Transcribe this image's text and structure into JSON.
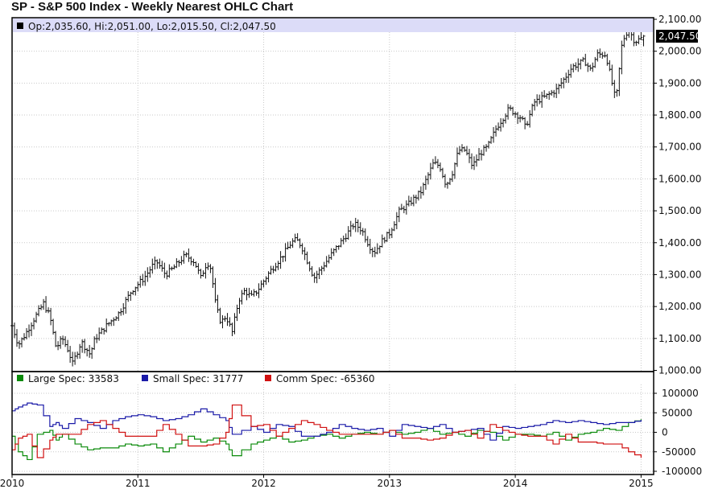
{
  "title": "SP - S&P 500 Index - Weekly Nearest OHLC Chart",
  "ohlc_legend": "Op:2,035.60, Hi:2,051.00, Lo:2,015.50, Cl:2,047.50",
  "last_price_label": "2,047.50",
  "cot_legend": [
    {
      "label": "Large Spec: 33583",
      "color": "#0a8a0a"
    },
    {
      "label": "Small Spec: 31777",
      "color": "#1a1aa8"
    },
    {
      "label": "Comm Spec: -65360",
      "color": "#d01010"
    }
  ],
  "colors": {
    "bar": "#111111",
    "grid": "#c9c9c9",
    "frame": "#000000",
    "legend_band": "#dcdcf8",
    "large_spec": "#0a8a0a",
    "small_spec": "#1a1aa8",
    "comm_spec": "#d01010"
  },
  "chart_data": [
    {
      "type": "ohlc",
      "title": "SP - S&P 500 Index - Weekly Nearest OHLC Chart",
      "ylim": [
        1000,
        2100
      ],
      "xlim": [
        2010.0,
        2015.1
      ],
      "y_ticks": [
        "1,000.00",
        "1,100.00",
        "1,200.00",
        "1,300.00",
        "1,400.00",
        "1,500.00",
        "1,600.00",
        "1,700.00",
        "1,800.00",
        "1,900.00",
        "2,000.00",
        "2,100.00"
      ],
      "y_tick_values": [
        1000,
        1100,
        1200,
        1300,
        1400,
        1500,
        1600,
        1700,
        1800,
        1900,
        2000,
        2100
      ],
      "grid": true,
      "last": {
        "open": 2035.6,
        "high": 2051.0,
        "low": 2015.5,
        "close": 2047.5
      },
      "path": [
        [
          2010.0,
          1140
        ],
        [
          2010.05,
          1080
        ],
        [
          2010.1,
          1110
        ],
        [
          2010.18,
          1165
        ],
        [
          2010.25,
          1210
        ],
        [
          2010.3,
          1170
        ],
        [
          2010.35,
          1070
        ],
        [
          2010.4,
          1100
        ],
        [
          2010.45,
          1060
        ],
        [
          2010.48,
          1020
        ],
        [
          2010.55,
          1090
        ],
        [
          2010.62,
          1050
        ],
        [
          2010.66,
          1100
        ],
        [
          2010.75,
          1140
        ],
        [
          2010.85,
          1180
        ],
        [
          2010.95,
          1250
        ],
        [
          2011.05,
          1290
        ],
        [
          2011.12,
          1330
        ],
        [
          2011.15,
          1340
        ],
        [
          2011.22,
          1300
        ],
        [
          2011.28,
          1320
        ],
        [
          2011.35,
          1350
        ],
        [
          2011.38,
          1360
        ],
        [
          2011.45,
          1340
        ],
        [
          2011.5,
          1290
        ],
        [
          2011.55,
          1340
        ],
        [
          2011.58,
          1320
        ],
        [
          2011.62,
          1200
        ],
        [
          2011.66,
          1150
        ],
        [
          2011.7,
          1170
        ],
        [
          2011.75,
          1120
        ],
        [
          2011.8,
          1220
        ],
        [
          2011.85,
          1250
        ],
        [
          2011.9,
          1230
        ],
        [
          2011.95,
          1250
        ],
        [
          2012.05,
          1310
        ],
        [
          2012.15,
          1360
        ],
        [
          2012.22,
          1400
        ],
        [
          2012.26,
          1410
        ],
        [
          2012.3,
          1390
        ],
        [
          2012.36,
          1330
        ],
        [
          2012.4,
          1290
        ],
        [
          2012.46,
          1320
        ],
        [
          2012.55,
          1370
        ],
        [
          2012.65,
          1420
        ],
        [
          2012.72,
          1460
        ],
        [
          2012.78,
          1440
        ],
        [
          2012.84,
          1390
        ],
        [
          2012.88,
          1370
        ],
        [
          2012.95,
          1410
        ],
        [
          2013.0,
          1430
        ],
        [
          2013.08,
          1500
        ],
        [
          2013.15,
          1520
        ],
        [
          2013.25,
          1560
        ],
        [
          2013.35,
          1650
        ],
        [
          2013.4,
          1640
        ],
        [
          2013.45,
          1580
        ],
        [
          2013.5,
          1620
        ],
        [
          2013.55,
          1690
        ],
        [
          2013.6,
          1690
        ],
        [
          2013.66,
          1640
        ],
        [
          2013.72,
          1680
        ],
        [
          2013.78,
          1700
        ],
        [
          2013.85,
          1760
        ],
        [
          2013.95,
          1820
        ],
        [
          2014.05,
          1790
        ],
        [
          2014.08,
          1760
        ],
        [
          2014.15,
          1840
        ],
        [
          2014.25,
          1860
        ],
        [
          2014.33,
          1880
        ],
        [
          2014.4,
          1920
        ],
        [
          2014.45,
          1950
        ],
        [
          2014.55,
          1970
        ],
        [
          2014.6,
          1940
        ],
        [
          2014.65,
          1990
        ],
        [
          2014.72,
          1990
        ],
        [
          2014.78,
          1880
        ],
        [
          2014.8,
          1840
        ],
        [
          2014.85,
          2030
        ],
        [
          2014.9,
          2070
        ],
        [
          2014.95,
          2030
        ],
        [
          2015.0,
          2040
        ]
      ]
    },
    {
      "type": "line",
      "title": "",
      "ylim": [
        -100000,
        100000
      ],
      "xlim": [
        2010.0,
        2015.1
      ],
      "y_ticks": [
        "100000",
        "50000",
        "0",
        "-50000",
        "-100000"
      ],
      "y_tick_values": [
        100000,
        50000,
        0,
        -50000,
        -100000
      ],
      "x_ticks": [
        "2010",
        "2011",
        "2012",
        "2013",
        "2014",
        "2015"
      ],
      "x_tick_values": [
        2010,
        2011,
        2012,
        2013,
        2014,
        2015
      ],
      "grid": true,
      "series": [
        {
          "name": "Large Spec: 33583",
          "x": [
            2010.0,
            2010.05,
            2010.12,
            2010.2,
            2010.3,
            2010.35,
            2010.4,
            2010.5,
            2010.6,
            2010.7,
            2010.8,
            2010.9,
            2011.0,
            2011.1,
            2011.2,
            2011.3,
            2011.4,
            2011.5,
            2011.6,
            2011.7,
            2011.75,
            2011.9,
            2012.0,
            2012.1,
            2012.2,
            2012.3,
            2012.4,
            2012.5,
            2012.6,
            2012.7,
            2012.8,
            2012.9,
            2013.0,
            2013.1,
            2013.2,
            2013.3,
            2013.4,
            2013.5,
            2013.6,
            2013.7,
            2013.8,
            2013.9,
            2014.0,
            2014.1,
            2014.2,
            2014.3,
            2014.4,
            2014.5,
            2014.6,
            2014.7,
            2014.8,
            2014.9,
            2015.0
          ],
          "values": [
            -10000,
            -50000,
            -70000,
            -5000,
            5000,
            -20000,
            -5000,
            -30000,
            -45000,
            -40000,
            -40000,
            -30000,
            -35000,
            -30000,
            -50000,
            -30000,
            -10000,
            -25000,
            -15000,
            -30000,
            -60000,
            -30000,
            -20000,
            -10000,
            -25000,
            -20000,
            -10000,
            -5000,
            -15000,
            -5000,
            0,
            -5000,
            5000,
            -5000,
            0,
            10000,
            -5000,
            0,
            -10000,
            5000,
            0,
            -20000,
            -5000,
            -5000,
            -10000,
            0,
            -20000,
            -5000,
            0,
            10000,
            5000,
            25000,
            33583
          ]
        },
        {
          "name": "Small Spec: 31777",
          "x": [
            2010.0,
            2010.05,
            2010.12,
            2010.2,
            2010.3,
            2010.35,
            2010.4,
            2010.5,
            2010.6,
            2010.7,
            2010.8,
            2010.9,
            2011.0,
            2011.1,
            2011.2,
            2011.3,
            2011.4,
            2011.5,
            2011.6,
            2011.7,
            2011.75,
            2011.9,
            2012.0,
            2012.1,
            2012.2,
            2012.3,
            2012.4,
            2012.5,
            2012.6,
            2012.7,
            2012.8,
            2012.9,
            2013.0,
            2013.1,
            2013.2,
            2013.3,
            2013.4,
            2013.5,
            2013.6,
            2013.7,
            2013.8,
            2013.9,
            2014.0,
            2014.1,
            2014.2,
            2014.3,
            2014.4,
            2014.5,
            2014.6,
            2014.7,
            2014.8,
            2014.9,
            2015.0
          ],
          "values": [
            55000,
            65000,
            75000,
            70000,
            15000,
            25000,
            10000,
            35000,
            25000,
            10000,
            30000,
            40000,
            45000,
            40000,
            30000,
            35000,
            45000,
            60000,
            45000,
            30000,
            -5000,
            15000,
            0,
            20000,
            15000,
            -10000,
            -10000,
            0,
            20000,
            10000,
            5000,
            10000,
            -10000,
            20000,
            15000,
            10000,
            20000,
            0,
            5000,
            10000,
            -20000,
            15000,
            10000,
            15000,
            20000,
            30000,
            25000,
            30000,
            25000,
            20000,
            25000,
            25000,
            31777
          ]
        },
        {
          "name": "Comm Spec: -65360",
          "x": [
            2010.0,
            2010.05,
            2010.12,
            2010.2,
            2010.3,
            2010.35,
            2010.4,
            2010.5,
            2010.6,
            2010.7,
            2010.8,
            2010.9,
            2011.0,
            2011.1,
            2011.2,
            2011.3,
            2011.4,
            2011.5,
            2011.6,
            2011.7,
            2011.75,
            2011.9,
            2012.0,
            2012.1,
            2012.2,
            2012.3,
            2012.4,
            2012.5,
            2012.6,
            2012.7,
            2012.8,
            2012.9,
            2013.0,
            2013.1,
            2013.2,
            2013.3,
            2013.4,
            2013.5,
            2013.6,
            2013.7,
            2013.8,
            2013.9,
            2014.0,
            2014.1,
            2014.2,
            2014.3,
            2014.4,
            2014.5,
            2014.6,
            2014.7,
            2014.8,
            2014.9,
            2015.0
          ],
          "values": [
            -45000,
            -15000,
            -5000,
            -65000,
            -20000,
            -5000,
            -5000,
            -5000,
            20000,
            30000,
            10000,
            -10000,
            -10000,
            -10000,
            20000,
            -5000,
            -35000,
            -35000,
            -30000,
            0,
            70000,
            15000,
            20000,
            -10000,
            10000,
            30000,
            20000,
            5000,
            -5000,
            -5000,
            -5000,
            -5000,
            5000,
            -15000,
            -15000,
            -20000,
            -15000,
            0,
            5000,
            -15000,
            20000,
            5000,
            -5000,
            -10000,
            -10000,
            -30000,
            -5000,
            -25000,
            -25000,
            -30000,
            -30000,
            -50000,
            -65360
          ]
        }
      ]
    }
  ]
}
